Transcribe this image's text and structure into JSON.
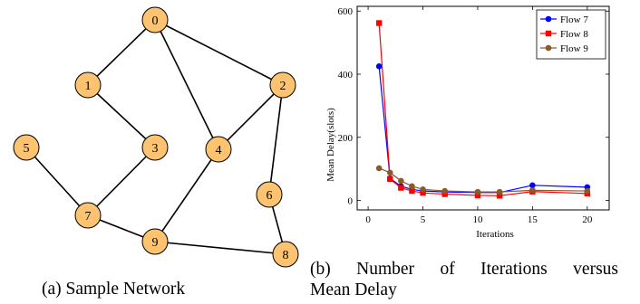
{
  "network": {
    "caption": "(a) Sample Network",
    "node_color": "#fdc371",
    "nodes": [
      "0",
      "1",
      "2",
      "3",
      "4",
      "5",
      "6",
      "7",
      "8",
      "9"
    ],
    "edges": [
      [
        "0",
        "1"
      ],
      [
        "0",
        "2"
      ],
      [
        "0",
        "4"
      ],
      [
        "1",
        "3"
      ],
      [
        "3",
        "7"
      ],
      [
        "5",
        "7"
      ],
      [
        "2",
        "4"
      ],
      [
        "2",
        "6"
      ],
      [
        "4",
        "9"
      ],
      [
        "7",
        "9"
      ],
      [
        "6",
        "8"
      ],
      [
        "9",
        "8"
      ]
    ]
  },
  "chart_caption": {
    "line1_words": [
      "(b)",
      "Number",
      "of",
      "Iterations",
      "versus"
    ],
    "line2": "Mean Delay"
  },
  "chart_data": {
    "type": "line",
    "xlabel": "Iterations",
    "ylabel": "Mean Delay(slots)",
    "xlim": [
      -1,
      22
    ],
    "ylim": [
      -30,
      615
    ],
    "xticks": [
      "0",
      "5",
      "10",
      "15",
      "20"
    ],
    "yticks": [
      "0",
      "200",
      "400",
      "600"
    ],
    "legend_position": "top-right",
    "grid": false,
    "x": [
      1,
      2,
      3,
      4,
      5,
      7,
      10,
      12,
      15,
      20
    ],
    "series": [
      {
        "name": "Flow 7",
        "color": "#0000ff",
        "marker": "circle",
        "values": [
          425,
          70,
          45,
          35,
          30,
          27,
          25,
          25,
          48,
          42
        ]
      },
      {
        "name": "Flow 8",
        "color": "#ff0000",
        "marker": "square",
        "values": [
          562,
          68,
          40,
          30,
          24,
          20,
          16,
          15,
          28,
          22
        ]
      },
      {
        "name": "Flow 9",
        "color": "#8b5a2b",
        "marker": "circle",
        "values": [
          102,
          88,
          62,
          45,
          35,
          30,
          27,
          27,
          32,
          30
        ]
      }
    ]
  }
}
